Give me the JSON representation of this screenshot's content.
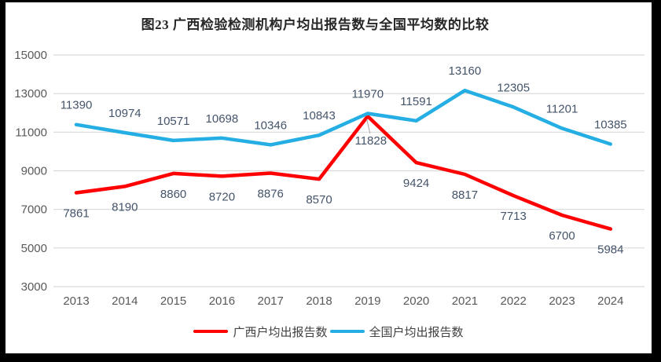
{
  "title": "图23 广西检验检测机构户均出报告数与全国平均数的比较",
  "chart_data": {
    "type": "line",
    "categories": [
      "2013",
      "2014",
      "2015",
      "2016",
      "2017",
      "2018",
      "2019",
      "2020",
      "2021",
      "2022",
      "2023",
      "2024"
    ],
    "series": [
      {
        "name": "广西户均出报告数",
        "color": "#FE0000",
        "label_side": "below",
        "values": [
          7861,
          8190,
          8860,
          8720,
          8876,
          8570,
          11828,
          9424,
          8817,
          7713,
          6700,
          5984
        ]
      },
      {
        "name": "全国户均出报告数",
        "color": "#25AEE4",
        "label_side": "above",
        "values": [
          11390,
          10974,
          10571,
          10698,
          10346,
          10843,
          11970,
          11591,
          13160,
          12305,
          11201,
          10385
        ]
      }
    ],
    "xlabel": "",
    "ylabel": "",
    "ylim": [
      3000,
      15000
    ],
    "y_ticks": [
      3000,
      5000,
      7000,
      9000,
      11000,
      13000,
      15000
    ],
    "grid": true,
    "data_labels": true,
    "legend_position": "bottom",
    "annotations": [
      {
        "series_index": 0,
        "point_index": 6,
        "leader_line": true,
        "dx": 4,
        "dy": 36
      }
    ]
  },
  "colors": {
    "background": "#FFFFFF",
    "frame": "#000000",
    "grid": "#D9D9D9",
    "axis_text": "#595959",
    "data_label_text": "#44546A",
    "title_text": "#262626",
    "legend_text": "#404040",
    "leader_line": "#A6A6A6"
  }
}
